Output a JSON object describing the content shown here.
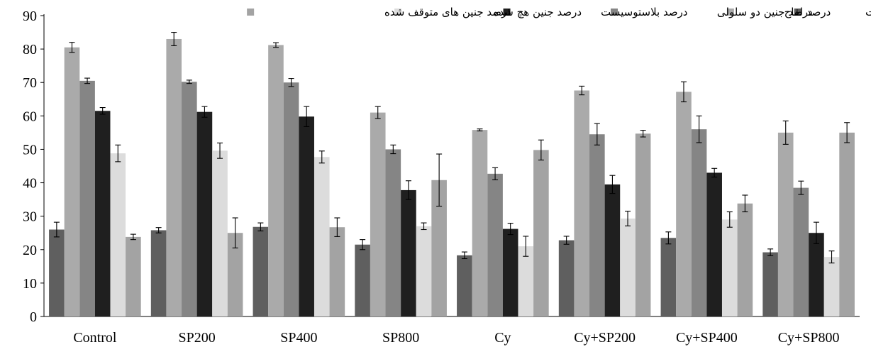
{
  "chart_data": {
    "type": "bar",
    "title": "",
    "xlabel": "",
    "ylabel": "",
    "ylim": [
      0,
      90
    ],
    "yticks": [
      0,
      10,
      20,
      30,
      40,
      50,
      60,
      70,
      80,
      90
    ],
    "grid": false,
    "legend_position": "top",
    "categories": [
      "Control",
      "SP200",
      "SP400",
      "SP800",
      "Cy",
      "Cy+SP200",
      "Cy+SP400",
      "Cy+SP800"
    ],
    "series": [
      {
        "name": "تعداد اووسیت",
        "color": "#5f5f5f",
        "values": [
          26,
          25.8,
          26.8,
          21.5,
          18.3,
          22.8,
          23.5,
          19.2
        ],
        "errors": [
          2.2,
          0.8,
          1.2,
          1.5,
          1.0,
          1.2,
          1.8,
          1.0
        ]
      },
      {
        "name": "درصد لقاح",
        "color": "#aaaaaa",
        "values": [
          80.5,
          83,
          81.2,
          61,
          55.8,
          67.6,
          67.2,
          55
        ],
        "errors": [
          1.5,
          2.0,
          0.7,
          1.8,
          0.3,
          1.3,
          3.0,
          3.5
        ]
      },
      {
        "name": "درصد جنین دو سلولی",
        "color": "#858585",
        "values": [
          70.5,
          70.2,
          70,
          50,
          42.7,
          54.5,
          56,
          38.5
        ],
        "errors": [
          0.8,
          0.5,
          1.2,
          1.3,
          1.8,
          3.2,
          4.0,
          2.0
        ]
      },
      {
        "name": "درصد بلاستوسیست",
        "color": "#1f1f1f",
        "values": [
          61.5,
          61.2,
          59.8,
          37.8,
          26.2,
          39.5,
          43,
          25
        ],
        "errors": [
          1.0,
          1.6,
          3.0,
          2.8,
          1.7,
          2.7,
          1.3,
          3.2
        ]
      },
      {
        "name": "درصد جنین هچ شده",
        "color": "#dcdcdc",
        "values": [
          48.8,
          49.6,
          47.7,
          27,
          21,
          29.3,
          29,
          17.8
        ],
        "errors": [
          2.5,
          2.3,
          1.8,
          1.0,
          3.0,
          2.2,
          2.3,
          1.8
        ]
      },
      {
        "name": "درصد جنین های متوقف شده",
        "color": "#a3a3a3",
        "values": [
          23.8,
          25,
          26.7,
          40.8,
          49.8,
          54.7,
          33.8,
          55
        ],
        "errors": [
          0.8,
          4.5,
          2.8,
          7.8,
          3.0,
          1.0,
          2.5,
          3.0
        ]
      }
    ]
  }
}
